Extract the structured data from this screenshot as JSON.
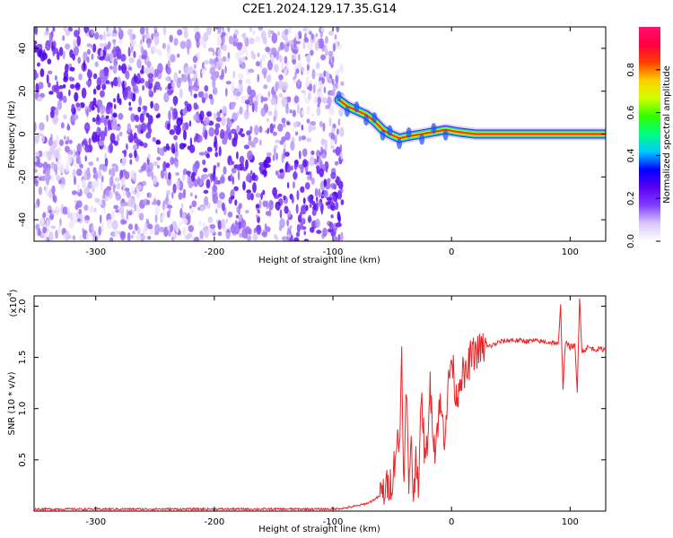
{
  "title": "C2E1.2024.129.17.35.G14",
  "chart_data": [
    {
      "type": "heatmap",
      "name": "spectrogram",
      "xlabel": "Height of straight line (km)",
      "ylabel": "Frequency (Hz)",
      "xlim": [
        -352,
        130
      ],
      "ylim": [
        -50,
        50
      ],
      "xticks": [
        -300,
        -200,
        -100,
        0,
        100
      ],
      "yticks": [
        40,
        20,
        0,
        -20,
        -40
      ],
      "colorbar": {
        "label": "Normalized spectral amplitude",
        "range": [
          0,
          1
        ],
        "ticks": [
          "0.0",
          "0.2",
          "0.4",
          "0.6",
          "0.8"
        ],
        "tick_values": [
          0.0,
          0.2,
          0.4,
          0.6,
          0.8
        ],
        "colors": [
          "#ffffff",
          "#d8c8f8",
          "#8040ff",
          "#5a00f0",
          "#0000ff",
          "#00c8ff",
          "#00ff80",
          "#30ff00",
          "#d0ff00",
          "#ffd000",
          "#ff4000",
          "#ff0040",
          "#ff1070"
        ]
      },
      "noise_region_x": [
        -352,
        -92
      ],
      "signal_path": [
        {
          "x": -95,
          "y": 16
        },
        {
          "x": -88,
          "y": 13
        },
        {
          "x": -80,
          "y": 11
        },
        {
          "x": -72,
          "y": 9
        },
        {
          "x": -65,
          "y": 6
        },
        {
          "x": -58,
          "y": 2
        },
        {
          "x": -52,
          "y": 0
        },
        {
          "x": -44,
          "y": -2
        },
        {
          "x": -36,
          "y": -1
        },
        {
          "x": -25,
          "y": 0
        },
        {
          "x": -15,
          "y": 1
        },
        {
          "x": -5,
          "y": 2
        },
        {
          "x": 5,
          "y": 1
        },
        {
          "x": 20,
          "y": 0
        },
        {
          "x": 130,
          "y": 0
        }
      ],
      "grid": false,
      "legend": "colorbar-right"
    },
    {
      "type": "line",
      "name": "snr",
      "xlabel": "Height of straight line (km)",
      "ylabel": "SNR (10 * v/v)",
      "y_multiplier": "(x10",
      "y_multiplier_exp": "4",
      "y_multiplier_close": ")",
      "xlim": [
        -352,
        130
      ],
      "ylim": [
        0,
        2.1
      ],
      "xticks": [
        -300,
        -200,
        -100,
        0,
        100
      ],
      "yticks": [
        0.5,
        1.0,
        1.5,
        2.0
      ],
      "ytick_labels": [
        "0.5",
        "1.0",
        "1.5",
        "2.0"
      ],
      "color": "#e8262a",
      "series": [
        {
          "x": [
            -352,
            -300,
            -200,
            -120,
            -100,
            -90,
            -80,
            -70,
            -60,
            -50,
            -46,
            -44,
            -42,
            -40,
            -38,
            -36,
            -34,
            -32,
            -30,
            -28,
            -25,
            -22,
            -18,
            -14,
            -10,
            -6,
            -2,
            0,
            4,
            8,
            12,
            16,
            20,
            25,
            30,
            35,
            40,
            50,
            60,
            70,
            80,
            88,
            90,
            92,
            94,
            96,
            100,
            104,
            106,
            108,
            110,
            115,
            120,
            130
          ],
          "y": [
            0.02,
            0.02,
            0.02,
            0.02,
            0.02,
            0.03,
            0.05,
            0.08,
            0.15,
            0.3,
            0.7,
            0.6,
            1.55,
            0.2,
            1.3,
            0.1,
            0.8,
            0.05,
            0.6,
            0.3,
            1.1,
            0.4,
            1.2,
            0.6,
            1.05,
            0.75,
            1.3,
            1.5,
            1.1,
            1.35,
            1.3,
            1.5,
            1.55,
            1.58,
            1.6,
            1.62,
            1.65,
            1.67,
            1.66,
            1.66,
            1.65,
            1.64,
            1.62,
            2.0,
            1.2,
            1.65,
            1.6,
            1.62,
            1.15,
            2.1,
            1.55,
            1.6,
            1.58,
            1.58
          ]
        }
      ],
      "grid": false
    }
  ]
}
